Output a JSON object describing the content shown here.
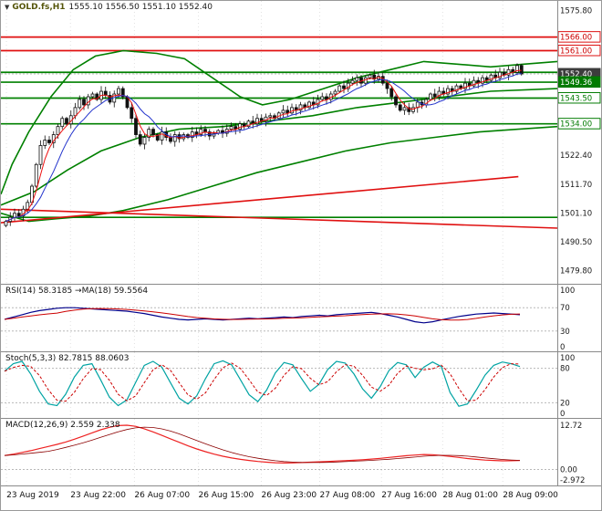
{
  "header": {
    "menu_icon": "▼",
    "symbol": "GOLD.fs,H1",
    "ohlc": "1555.10 1556.50 1551.10 1552.40"
  },
  "colors": {
    "green_line": "#008000",
    "red_line": "#e01010",
    "candle_outline": "#111111",
    "candle_up_fill": "#ffffff",
    "candle_down_fill": "#111111",
    "ma_fast": "#ee1111",
    "ma_slow": "#2233cc",
    "rsi_line": "#00008b",
    "rsi_ma": "#cc0000",
    "stoch_k": "#00a3a3",
    "stoch_d": "#cc0000",
    "macd_line": "#ee2222",
    "macd_signal": "#8b0000",
    "grid": "#e2e2e2",
    "level_dash": "#b8b8b8",
    "panel_border": "#8a8a8a",
    "axis_text": "#1a1a1a"
  },
  "main_axis": {
    "plain_labels": [
      {
        "v": 1575.8,
        "t": "1575.80"
      },
      {
        "v": 1522.4,
        "t": "1522.40"
      },
      {
        "v": 1511.7,
        "t": "1511.70"
      },
      {
        "v": 1501.1,
        "t": "1501.10"
      },
      {
        "v": 1490.5,
        "t": "1490.50"
      },
      {
        "v": 1479.8,
        "t": "1479.80"
      }
    ],
    "badges": [
      {
        "v": 1566.0,
        "t": "1566.00",
        "s": "red-outline"
      },
      {
        "v": 1561.0,
        "t": "1561.00",
        "s": "red-outline"
      },
      {
        "v": 1552.4,
        "t": "1552.40",
        "s": "dark-fill"
      },
      {
        "v": 1549.36,
        "t": "1549.36",
        "s": "green-fill"
      },
      {
        "v": 1543.5,
        "t": "1543.50",
        "s": "green-outline"
      },
      {
        "v": 1534.0,
        "t": "1534.00",
        "s": "green-outline"
      }
    ]
  },
  "indicators": {
    "rsi": {
      "label": "RSI(14) 58.3185  →MA(18) 59.5564",
      "scale": [
        {
          "v": 100,
          "t": "100"
        },
        {
          "v": 70,
          "t": "70"
        },
        {
          "v": 30,
          "t": "30"
        },
        {
          "v": 0,
          "t": "0"
        }
      ],
      "levels": [
        70,
        30
      ]
    },
    "stoch": {
      "label": "Stoch(5,3,3) 82.7815 88.0603",
      "scale": [
        {
          "v": 100,
          "t": "100"
        },
        {
          "v": 80,
          "t": "80"
        },
        {
          "v": 20,
          "t": "20"
        },
        {
          "v": 0,
          "t": "0"
        }
      ],
      "levels": [
        80,
        20
      ]
    },
    "macd": {
      "label": "MACD(12,26,9) 2.559 2.338",
      "scale": [
        {
          "v": 12.72,
          "t": "12.72"
        },
        {
          "v": 0,
          "t": "0.00"
        },
        {
          "v": -2.972,
          "t": "-2.972"
        }
      ],
      "levels": [
        0
      ]
    }
  },
  "x_axis": {
    "labels": [
      "23 Aug 2019",
      "23 Aug 22:00",
      "26 Aug 07:00",
      "26 Aug 15:00",
      "26 Aug 23:00",
      "27 Aug 08:00",
      "27 Aug 16:00",
      "28 Aug 01:00",
      "28 Aug 09:00"
    ],
    "fractions": [
      0.01,
      0.125,
      0.24,
      0.355,
      0.468,
      0.573,
      0.684,
      0.794,
      0.902
    ]
  },
  "chart_data": {
    "type": "candlestick",
    "symbol": "GOLD.fs",
    "timeframe": "H1",
    "title": "GOLD.fs,H1",
    "ohlc_display": {
      "open": 1555.1,
      "high": 1556.5,
      "low": 1551.1,
      "close": 1552.4
    },
    "current_price": 1552.4,
    "ylim": [
      1477,
      1578
    ],
    "closes": [
      1498,
      1499.5,
      1501,
      1500,
      1502.5,
      1505,
      1511,
      1519,
      1526,
      1528,
      1527,
      1530,
      1533,
      1536,
      1534,
      1537,
      1540,
      1543,
      1541,
      1544,
      1545,
      1543,
      1546,
      1544.5,
      1542,
      1545,
      1547,
      1544,
      1540,
      1536,
      1530,
      1526.5,
      1529,
      1532,
      1530,
      1528,
      1531,
      1529,
      1527.5,
      1530,
      1528.5,
      1530,
      1529,
      1531,
      1530,
      1532,
      1531,
      1529.5,
      1530.5,
      1531.5,
      1530.5,
      1532,
      1533,
      1532,
      1534,
      1533,
      1535,
      1534,
      1536,
      1535,
      1536.5,
      1537,
      1536,
      1538,
      1539,
      1538,
      1540,
      1539,
      1541,
      1540,
      1542,
      1541,
      1543,
      1544,
      1543,
      1545,
      1546,
      1548,
      1547,
      1549,
      1550,
      1551,
      1549,
      1551,
      1552,
      1550.5,
      1551.5,
      1549,
      1547,
      1544,
      1541,
      1539,
      1540,
      1538.5,
      1540,
      1542,
      1541,
      1543,
      1545,
      1544,
      1546,
      1545,
      1547,
      1546,
      1548,
      1547,
      1549,
      1548,
      1550,
      1549,
      1551,
      1550,
      1552,
      1551,
      1553,
      1552,
      1554,
      1553,
      1555.5,
      1552.4
    ],
    "hlines_red": [
      1566.0,
      1561.0
    ],
    "hlines_green": [
      1553.0,
      1549.36,
      1543.5,
      1534.0,
      1499.5
    ],
    "overlays": [
      {
        "name": "upper-band",
        "color": "#008000",
        "width": 1.6,
        "points": [
          [
            0,
            1508
          ],
          [
            0.02,
            1519
          ],
          [
            0.05,
            1531
          ],
          [
            0.09,
            1544
          ],
          [
            0.13,
            1554
          ],
          [
            0.17,
            1559
          ],
          [
            0.22,
            1561
          ],
          [
            0.28,
            1560
          ],
          [
            0.33,
            1558
          ],
          [
            0.38,
            1551
          ],
          [
            0.43,
            1544
          ],
          [
            0.47,
            1541
          ],
          [
            0.52,
            1543
          ],
          [
            0.58,
            1547
          ],
          [
            0.64,
            1551
          ],
          [
            0.7,
            1554
          ],
          [
            0.76,
            1557
          ],
          [
            0.82,
            1556
          ],
          [
            0.88,
            1555
          ],
          [
            0.94,
            1556
          ],
          [
            1,
            1557
          ]
        ]
      },
      {
        "name": "lower-band",
        "color": "#008000",
        "width": 1.6,
        "points": [
          [
            0,
            1501
          ],
          [
            0.05,
            1498
          ],
          [
            0.1,
            1499
          ],
          [
            0.16,
            1500
          ],
          [
            0.22,
            1502
          ],
          [
            0.3,
            1506
          ],
          [
            0.38,
            1511
          ],
          [
            0.46,
            1516
          ],
          [
            0.54,
            1520
          ],
          [
            0.62,
            1524
          ],
          [
            0.7,
            1527
          ],
          [
            0.78,
            1529
          ],
          [
            0.86,
            1531
          ],
          [
            0.93,
            1532
          ],
          [
            1,
            1533
          ]
        ]
      },
      {
        "name": "mid-band",
        "color": "#008000",
        "width": 1.6,
        "points": [
          [
            0,
            1504
          ],
          [
            0.06,
            1509
          ],
          [
            0.12,
            1517
          ],
          [
            0.18,
            1524
          ],
          [
            0.25,
            1529
          ],
          [
            0.32,
            1532
          ],
          [
            0.4,
            1533
          ],
          [
            0.48,
            1535
          ],
          [
            0.56,
            1537
          ],
          [
            0.64,
            1540
          ],
          [
            0.72,
            1542
          ],
          [
            0.8,
            1544
          ],
          [
            0.88,
            1546
          ],
          [
            1,
            1547
          ]
        ]
      },
      {
        "name": "red-trendline-down",
        "color": "#e01010",
        "width": 1.6,
        "points": [
          [
            0,
            1502.5
          ],
          [
            1,
            1495.5
          ]
        ]
      },
      {
        "name": "red-trendline-up",
        "color": "#e01010",
        "width": 1.6,
        "points": [
          [
            0,
            1497.5
          ],
          [
            0.93,
            1514.5
          ]
        ]
      }
    ],
    "rsi": {
      "range": [
        0,
        100
      ],
      "values": [
        50,
        54,
        58,
        62,
        65,
        67,
        69,
        70,
        70,
        69,
        68,
        67,
        66,
        65,
        64,
        62,
        60,
        57,
        54,
        52,
        50,
        49,
        50,
        51,
        50,
        49,
        50,
        51,
        52,
        51,
        52,
        53,
        54,
        53,
        55,
        56,
        57,
        56,
        58,
        59,
        60,
        61,
        62,
        60,
        57,
        54,
        50,
        46,
        44,
        46,
        49,
        52,
        55,
        57,
        59,
        60,
        61,
        60,
        59,
        58
      ],
      "last": 58.3185,
      "ma_last": 59.5564
    },
    "stoch": {
      "range": [
        0,
        100
      ],
      "k": [
        75,
        88,
        92,
        70,
        40,
        18,
        15,
        35,
        65,
        85,
        88,
        60,
        30,
        15,
        25,
        55,
        85,
        92,
        82,
        55,
        28,
        18,
        32,
        62,
        88,
        93,
        86,
        60,
        34,
        22,
        42,
        72,
        90,
        86,
        62,
        40,
        52,
        78,
        92,
        89,
        70,
        44,
        28,
        48,
        76,
        90,
        86,
        64,
        82,
        91,
        83,
        38,
        14,
        18,
        42,
        68,
        85,
        91,
        88,
        83
      ],
      "k_last": 82.7815,
      "d_last": 88.0603
    },
    "macd": {
      "range": [
        -3.8,
        13.5
      ],
      "line": [
        4.0,
        4.4,
        4.9,
        5.4,
        6.0,
        6.6,
        7.2,
        7.9,
        8.7,
        9.6,
        10.5,
        11.4,
        12.1,
        12.6,
        12.72,
        12.4,
        11.7,
        10.8,
        9.8,
        8.8,
        7.8,
        6.8,
        5.9,
        5.1,
        4.4,
        3.8,
        3.3,
        2.9,
        2.6,
        2.3,
        2.1,
        1.95,
        1.85,
        1.9,
        2.0,
        2.1,
        2.2,
        2.3,
        2.45,
        2.55,
        2.65,
        2.8,
        3.0,
        3.2,
        3.45,
        3.7,
        3.95,
        4.15,
        4.3,
        4.25,
        4.05,
        3.75,
        3.45,
        3.15,
        2.9,
        2.7,
        2.6,
        2.5,
        2.52,
        2.56
      ],
      "last": 2.559,
      "signal_last": 2.338
    }
  }
}
